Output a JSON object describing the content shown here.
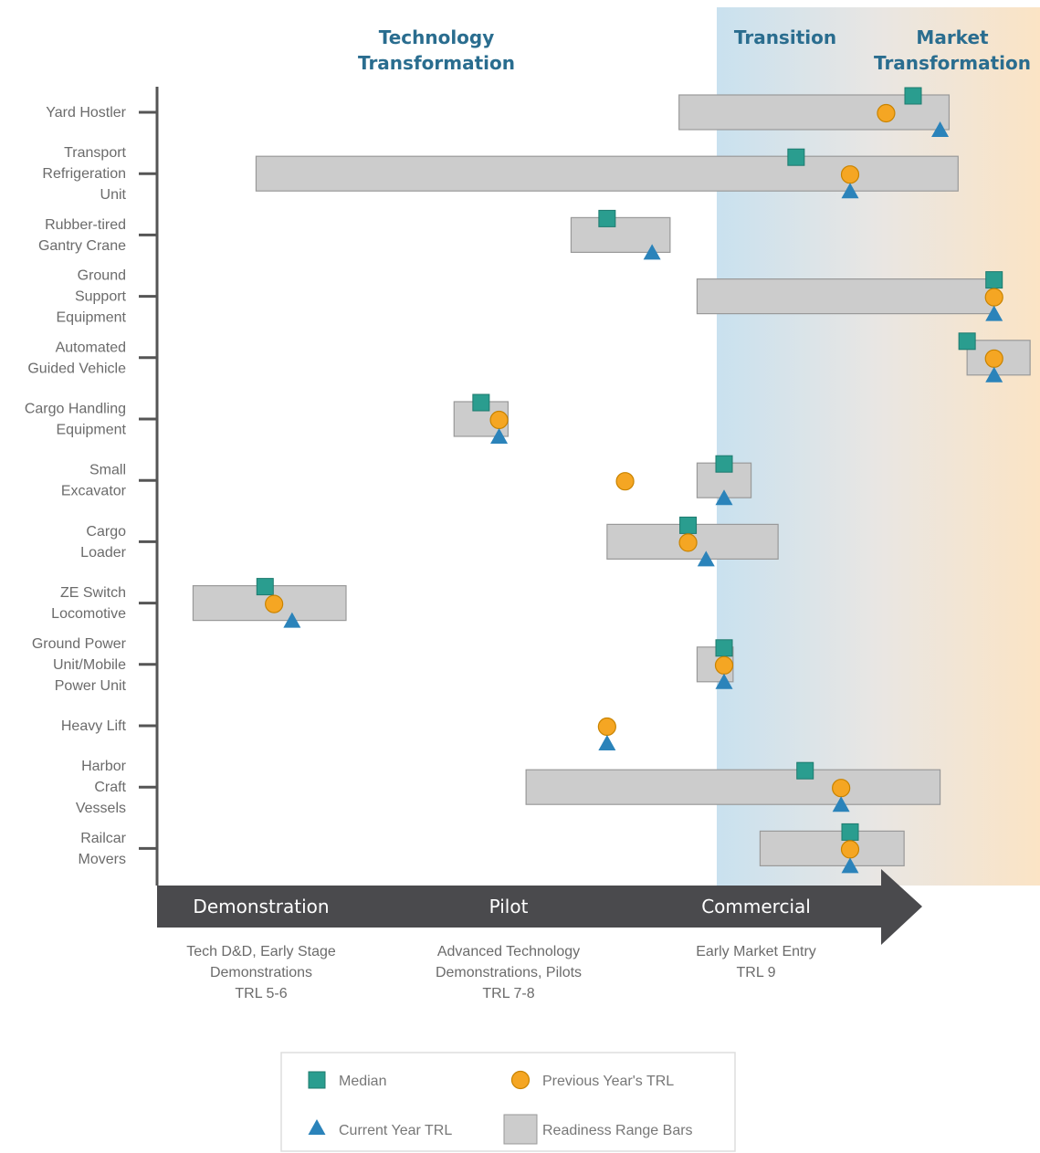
{
  "chart_data": {
    "type": "scatter",
    "regions": [
      {
        "name": "Technology\nTransformation"
      },
      {
        "name": "Transition"
      },
      {
        "name": "Market\nTransformation"
      }
    ],
    "stages": [
      {
        "label": "Demonstration",
        "description": [
          "Tech D&D, Early Stage",
          "Demonstrations",
          "TRL 5-6"
        ]
      },
      {
        "label": "Pilot",
        "description": [
          "Advanced Technology",
          "Demonstrations, Pilots",
          "TRL 7-8"
        ]
      },
      {
        "label": "Commercial",
        "description": [
          "Early Market Entry",
          "TRL 9"
        ]
      }
    ],
    "xlim": [
      5,
      9.9
    ],
    "categories": [
      {
        "name": "Yard Hostler",
        "range": [
          7.9,
          9.4
        ],
        "median": 9.2,
        "previous": 9.05,
        "current": 9.35
      },
      {
        "name": "Transport\nRefrigeration\nUnit",
        "range": [
          5.55,
          9.45
        ],
        "median": 8.55,
        "previous": 8.85,
        "current": 8.85
      },
      {
        "name": "Rubber-tired\nGantry Crane",
        "range": [
          7.3,
          7.85
        ],
        "median": 7.5,
        "previous": null,
        "current": 7.75
      },
      {
        "name": "Ground\nSupport\nEquipment",
        "range": [
          8.0,
          9.65
        ],
        "median": 9.65,
        "previous": 9.65,
        "current": 9.65
      },
      {
        "name": "Automated\nGuided Vehicle",
        "range": [
          9.5,
          9.85
        ],
        "median": 9.5,
        "previous": 9.65,
        "current": 9.65
      },
      {
        "name": "Cargo Handling\nEquipment",
        "range": [
          6.65,
          6.95
        ],
        "median": 6.8,
        "previous": 6.9,
        "current": 6.9
      },
      {
        "name": "Small\nExcavator",
        "range": [
          8.0,
          8.3
        ],
        "median": 8.15,
        "previous": 7.6,
        "current": 8.15
      },
      {
        "name": "Cargo\nLoader",
        "range": [
          7.5,
          8.45
        ],
        "median": 7.95,
        "previous": 7.95,
        "current": 8.05
      },
      {
        "name": "ZE Switch\nLocomotive",
        "range": [
          5.2,
          6.05
        ],
        "median": 5.6,
        "previous": 5.65,
        "current": 5.75
      },
      {
        "name": "Ground Power\nUnit/Mobile\nPower Unit",
        "range": [
          8.0,
          8.2
        ],
        "median": 8.15,
        "previous": 8.15,
        "current": 8.15
      },
      {
        "name": "Heavy Lift",
        "range": null,
        "median": null,
        "previous": 7.5,
        "current": 7.5
      },
      {
        "name": "Harbor\nCraft\nVessels",
        "range": [
          7.05,
          9.35
        ],
        "median": 8.6,
        "previous": 8.8,
        "current": 8.8
      },
      {
        "name": "Railcar\nMovers",
        "range": [
          8.35,
          9.15
        ],
        "median": 8.85,
        "previous": 8.85,
        "current": 8.85
      }
    ],
    "series": [
      {
        "name": "Median",
        "marker": "square",
        "color": "#2a9d8f"
      },
      {
        "name": "Previous Year's TRL",
        "marker": "circle",
        "color": "#f5a623"
      },
      {
        "name": "Current Year TRL",
        "marker": "triangle",
        "color": "#2b83ba"
      },
      {
        "name": "Readiness Range Bars",
        "marker": "bar",
        "color": "#cccccc"
      }
    ],
    "legend_position": "bottom-center",
    "grid": false
  }
}
